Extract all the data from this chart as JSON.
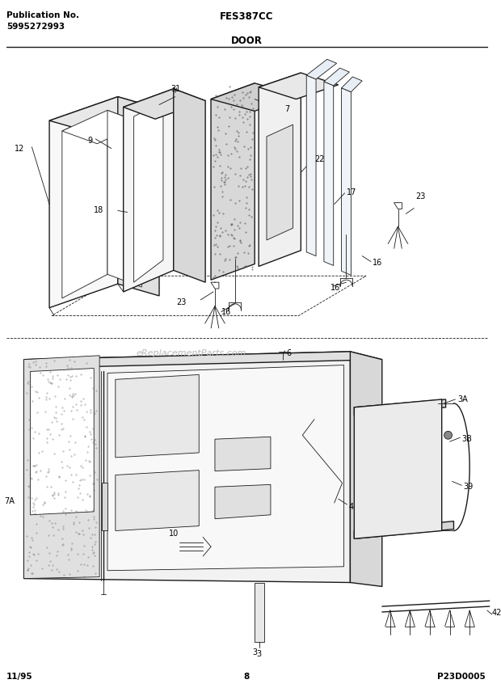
{
  "title": "DOOR",
  "model": "FES387CC",
  "pub_no_line1": "Publication No.",
  "pub_no_line2": "5995272993",
  "date": "11/95",
  "page": "8",
  "part_code": "P23D0005",
  "bg_color": "#ffffff",
  "line_color": "#1a1a1a",
  "gray_light": "#d0d0d0",
  "gray_mid": "#a0a0a0",
  "watermark": "eReplacementParts.com"
}
